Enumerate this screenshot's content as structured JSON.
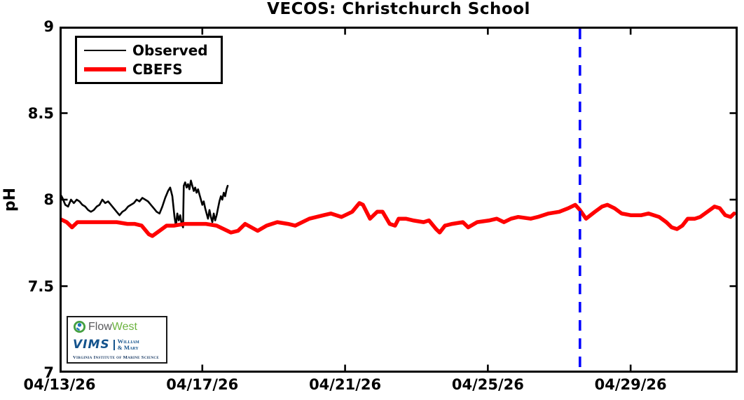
{
  "chart_data": {
    "type": "line",
    "title": "VECOS: Christchurch School",
    "ylabel": "pH",
    "xlabel": "",
    "ylim": [
      7,
      9
    ],
    "xlim_days": [
      0,
      19
    ],
    "grid": false,
    "legend_position": "top-left",
    "y_ticks": [
      {
        "value": 9,
        "label": "9"
      },
      {
        "value": 8.5,
        "label": "8.5"
      },
      {
        "value": 8,
        "label": "8"
      },
      {
        "value": 7.5,
        "label": "7.5"
      },
      {
        "value": 7,
        "label": "7"
      }
    ],
    "x_ticks": [
      {
        "day": 0,
        "label": "04/13/26"
      },
      {
        "day": 4,
        "label": "04/17/26"
      },
      {
        "day": 8,
        "label": "04/21/26"
      },
      {
        "day": 12,
        "label": "04/25/26"
      },
      {
        "day": 16,
        "label": "04/29/26"
      }
    ],
    "forecast_divider": {
      "day": 14.58,
      "color": "#0000ff",
      "style": "dashed",
      "width": 3.6
    },
    "series": [
      {
        "name": "Observed",
        "color": "#000000",
        "line_width": 2.6,
        "points": [
          [
            0,
            8.04
          ],
          [
            0.08,
            8.01
          ],
          [
            0.16,
            7.97
          ],
          [
            0.24,
            7.96
          ],
          [
            0.32,
            8.0
          ],
          [
            0.4,
            7.98
          ],
          [
            0.48,
            8.0
          ],
          [
            0.56,
            7.99
          ],
          [
            0.64,
            7.97
          ],
          [
            0.72,
            7.96
          ],
          [
            0.8,
            7.94
          ],
          [
            0.88,
            7.93
          ],
          [
            0.96,
            7.94
          ],
          [
            1.04,
            7.96
          ],
          [
            1.12,
            7.97
          ],
          [
            1.2,
            8.0
          ],
          [
            1.28,
            7.98
          ],
          [
            1.36,
            7.99
          ],
          [
            1.44,
            7.97
          ],
          [
            1.52,
            7.95
          ],
          [
            1.6,
            7.93
          ],
          [
            1.68,
            7.91
          ],
          [
            1.76,
            7.93
          ],
          [
            1.84,
            7.94
          ],
          [
            1.92,
            7.96
          ],
          [
            2.0,
            7.97
          ],
          [
            2.08,
            7.98
          ],
          [
            2.16,
            8.0
          ],
          [
            2.24,
            7.99
          ],
          [
            2.32,
            8.01
          ],
          [
            2.4,
            8.0
          ],
          [
            2.48,
            7.99
          ],
          [
            2.56,
            7.97
          ],
          [
            2.64,
            7.95
          ],
          [
            2.72,
            7.93
          ],
          [
            2.8,
            7.92
          ],
          [
            2.88,
            7.96
          ],
          [
            2.96,
            8.01
          ],
          [
            3.04,
            8.05
          ],
          [
            3.1,
            8.07
          ],
          [
            3.16,
            8.02
          ],
          [
            3.22,
            7.9
          ],
          [
            3.26,
            7.85
          ],
          [
            3.3,
            7.92
          ],
          [
            3.34,
            7.88
          ],
          [
            3.38,
            7.91
          ],
          [
            3.42,
            7.86
          ],
          [
            3.46,
            7.84
          ],
          [
            3.48,
            8.08
          ],
          [
            3.52,
            8.1
          ],
          [
            3.56,
            8.07
          ],
          [
            3.6,
            8.09
          ],
          [
            3.64,
            8.06
          ],
          [
            3.68,
            8.11
          ],
          [
            3.72,
            8.08
          ],
          [
            3.76,
            8.05
          ],
          [
            3.8,
            8.07
          ],
          [
            3.84,
            8.04
          ],
          [
            3.88,
            8.06
          ],
          [
            3.92,
            8.03
          ],
          [
            3.96,
            8.0
          ],
          [
            4.0,
            7.97
          ],
          [
            4.04,
            7.99
          ],
          [
            4.08,
            7.95
          ],
          [
            4.12,
            7.92
          ],
          [
            4.16,
            7.89
          ],
          [
            4.2,
            7.94
          ],
          [
            4.24,
            7.9
          ],
          [
            4.28,
            7.87
          ],
          [
            4.32,
            7.92
          ],
          [
            4.36,
            7.88
          ],
          [
            4.4,
            7.91
          ],
          [
            4.44,
            7.95
          ],
          [
            4.48,
            7.99
          ],
          [
            4.52,
            8.02
          ],
          [
            4.56,
            8.0
          ],
          [
            4.6,
            8.04
          ],
          [
            4.64,
            8.02
          ],
          [
            4.68,
            8.06
          ],
          [
            4.71,
            8.08
          ]
        ]
      },
      {
        "name": "CBEFS",
        "color": "#ff0000",
        "line_width": 5.5,
        "points": [
          [
            0,
            7.89
          ],
          [
            0.2,
            7.87
          ],
          [
            0.35,
            7.84
          ],
          [
            0.5,
            7.87
          ],
          [
            0.8,
            7.87
          ],
          [
            1.2,
            7.87
          ],
          [
            1.6,
            7.87
          ],
          [
            1.9,
            7.86
          ],
          [
            2.1,
            7.86
          ],
          [
            2.3,
            7.85
          ],
          [
            2.5,
            7.8
          ],
          [
            2.6,
            7.79
          ],
          [
            2.8,
            7.82
          ],
          [
            3.0,
            7.85
          ],
          [
            3.2,
            7.85
          ],
          [
            3.5,
            7.86
          ],
          [
            3.8,
            7.86
          ],
          [
            4.1,
            7.86
          ],
          [
            4.4,
            7.85
          ],
          [
            4.6,
            7.83
          ],
          [
            4.8,
            7.81
          ],
          [
            5.0,
            7.82
          ],
          [
            5.2,
            7.86
          ],
          [
            5.55,
            7.82
          ],
          [
            5.8,
            7.85
          ],
          [
            6.1,
            7.87
          ],
          [
            6.4,
            7.86
          ],
          [
            6.6,
            7.85
          ],
          [
            7.0,
            7.89
          ],
          [
            7.4,
            7.91
          ],
          [
            7.6,
            7.92
          ],
          [
            7.9,
            7.9
          ],
          [
            8.2,
            7.93
          ],
          [
            8.4,
            7.98
          ],
          [
            8.5,
            7.97
          ],
          [
            8.7,
            7.89
          ],
          [
            8.9,
            7.93
          ],
          [
            9.05,
            7.93
          ],
          [
            9.25,
            7.86
          ],
          [
            9.4,
            7.85
          ],
          [
            9.5,
            7.89
          ],
          [
            9.7,
            7.89
          ],
          [
            9.9,
            7.88
          ],
          [
            10.2,
            7.87
          ],
          [
            10.35,
            7.88
          ],
          [
            10.55,
            7.83
          ],
          [
            10.65,
            7.81
          ],
          [
            10.8,
            7.85
          ],
          [
            11.0,
            7.86
          ],
          [
            11.3,
            7.87
          ],
          [
            11.45,
            7.84
          ],
          [
            11.7,
            7.87
          ],
          [
            12.05,
            7.88
          ],
          [
            12.25,
            7.89
          ],
          [
            12.45,
            7.87
          ],
          [
            12.65,
            7.89
          ],
          [
            12.85,
            7.9
          ],
          [
            13.2,
            7.89
          ],
          [
            13.4,
            7.9
          ],
          [
            13.7,
            7.92
          ],
          [
            14.0,
            7.93
          ],
          [
            14.25,
            7.95
          ],
          [
            14.45,
            7.97
          ],
          [
            14.58,
            7.94
          ],
          [
            14.75,
            7.89
          ],
          [
            15.0,
            7.93
          ],
          [
            15.2,
            7.96
          ],
          [
            15.35,
            7.97
          ],
          [
            15.55,
            7.95
          ],
          [
            15.75,
            7.92
          ],
          [
            16.0,
            7.91
          ],
          [
            16.3,
            7.91
          ],
          [
            16.5,
            7.92
          ],
          [
            16.65,
            7.91
          ],
          [
            16.8,
            7.9
          ],
          [
            17.0,
            7.87
          ],
          [
            17.15,
            7.84
          ],
          [
            17.3,
            7.83
          ],
          [
            17.45,
            7.85
          ],
          [
            17.6,
            7.89
          ],
          [
            17.8,
            7.89
          ],
          [
            17.95,
            7.9
          ],
          [
            18.15,
            7.93
          ],
          [
            18.35,
            7.96
          ],
          [
            18.5,
            7.95
          ],
          [
            18.65,
            7.91
          ],
          [
            18.8,
            7.9
          ],
          [
            18.9,
            7.92
          ]
        ]
      }
    ]
  },
  "branding": {
    "flowwest": {
      "flow": "Flow",
      "west": "West"
    },
    "vims": {
      "wordmark": "VIMS",
      "college_line1": "William",
      "college_line2": "& Mary",
      "subtitle": "Virginia Institute of Marine Science"
    }
  },
  "colors": {
    "frame": "#000000",
    "observed": "#000000",
    "cbefs": "#ff0000",
    "divider": "#0000ff"
  }
}
